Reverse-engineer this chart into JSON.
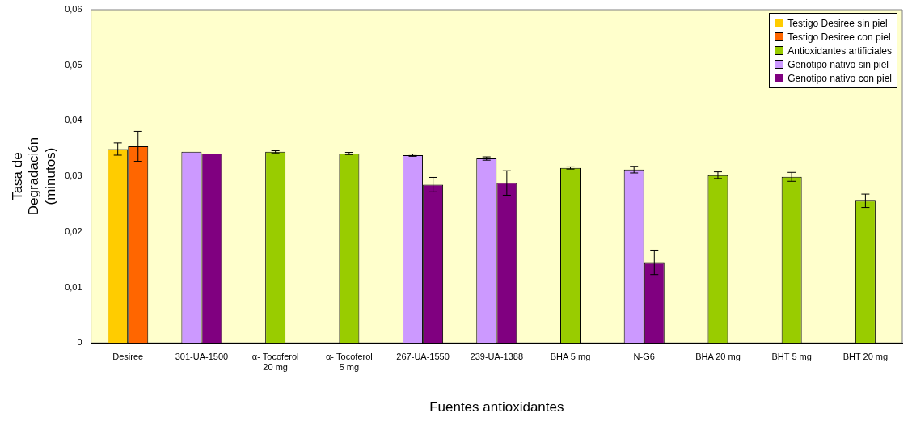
{
  "chart_data": {
    "type": "bar",
    "xlabel": "Fuentes antioxidantes",
    "ylabel": "Tasa de Degradación (minutos)",
    "categories": [
      "Desiree",
      "301-UA-1500",
      "α- Tocoferol 20 mg",
      "α- Tocoferol 5 mg",
      "267-UA-1550",
      "239-UA-1388",
      "BHA 5 mg",
      "N-G6",
      "BHA 20 mg",
      "BHT 5 mg",
      "BHT 20 mg"
    ],
    "series": [
      {
        "name": "Testigo Desiree sin piel",
        "color": "#ffcc00",
        "values": [
          0.0349,
          null,
          null,
          null,
          null,
          null,
          null,
          null,
          null,
          null,
          null
        ],
        "errors": [
          0.0011,
          null,
          null,
          null,
          null,
          null,
          null,
          null,
          null,
          null,
          null
        ]
      },
      {
        "name": "Testigo Desiree con piel",
        "color": "#ff6600",
        "values": [
          0.0354,
          null,
          null,
          null,
          null,
          null,
          null,
          null,
          null,
          null,
          null
        ],
        "errors": [
          0.0027,
          null,
          null,
          null,
          null,
          null,
          null,
          null,
          null,
          null,
          null
        ]
      },
      {
        "name": "Antioxidantes artificiales",
        "color": "#99cc00",
        "values": [
          null,
          null,
          0.0344,
          0.0341,
          null,
          null,
          0.0315,
          null,
          0.0302,
          0.0299,
          0.0256
        ],
        "errors": [
          null,
          null,
          0.0002,
          0.0002,
          null,
          null,
          0.0002,
          null,
          0.0006,
          0.0008,
          0.0012
        ]
      },
      {
        "name": "Genotipo nativo sin piel",
        "color": "#cc99ff",
        "values": [
          null,
          0.0344,
          null,
          null,
          0.0338,
          0.0332,
          null,
          0.0312,
          null,
          null,
          null
        ],
        "errors": [
          null,
          null,
          null,
          null,
          0.0002,
          0.0003,
          null,
          0.0006,
          null,
          null,
          null
        ]
      },
      {
        "name": "Genotipo nativo con piel",
        "color": "#800080",
        "values": [
          null,
          0.0341,
          null,
          null,
          0.0285,
          0.0288,
          null,
          0.0145,
          null,
          null,
          null
        ],
        "errors": [
          null,
          null,
          null,
          null,
          0.0013,
          0.0022,
          null,
          0.0022,
          null,
          null,
          null
        ]
      }
    ],
    "ylim": [
      0,
      0.06
    ],
    "yticks": [
      {
        "value": 0,
        "label": "0"
      },
      {
        "value": 0.01,
        "label": "0,01"
      },
      {
        "value": 0.02,
        "label": "0,02"
      },
      {
        "value": 0.03,
        "label": "0,03"
      },
      {
        "value": 0.04,
        "label": "0,04"
      },
      {
        "value": 0.05,
        "label": "0,05"
      },
      {
        "value": 0.06,
        "label": "0,06"
      }
    ],
    "legend": "top right",
    "grid": false
  }
}
